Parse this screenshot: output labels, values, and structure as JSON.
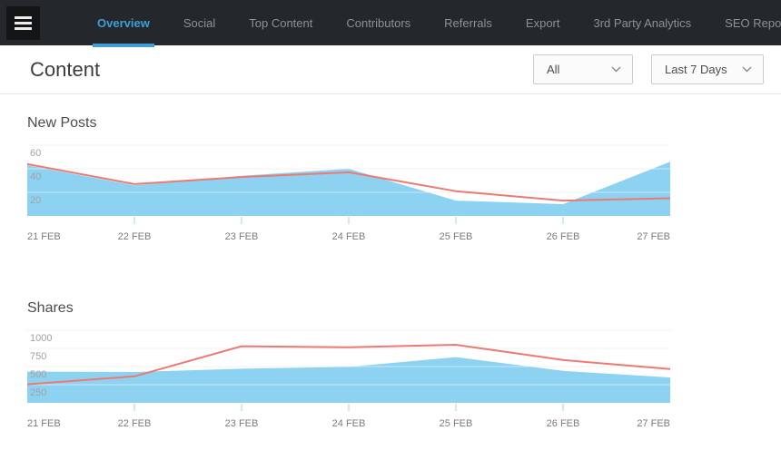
{
  "nav": {
    "menu_icon": "hamburger-menu-icon",
    "tabs": [
      {
        "label": "Overview",
        "active": true
      },
      {
        "label": "Social",
        "active": false
      },
      {
        "label": "Top Content",
        "active": false
      },
      {
        "label": "Contributors",
        "active": false
      },
      {
        "label": "Referrals",
        "active": false
      },
      {
        "label": "Export",
        "active": false
      },
      {
        "label": "3rd Party Analytics",
        "active": false
      },
      {
        "label": "SEO Report",
        "active": false
      }
    ],
    "active_color": "#3f9dd8",
    "bg_color": "#24282c"
  },
  "header": {
    "title": "Content",
    "filters": [
      {
        "name": "content-type",
        "value": "All",
        "icon": "chevron-down-icon"
      },
      {
        "name": "date-range",
        "value": "Last 7 Days",
        "icon": "chevron-down-icon"
      }
    ]
  },
  "chart_data": [
    {
      "type": "area",
      "title": "New Posts",
      "categories": [
        "21 FEB",
        "22 FEB",
        "23 FEB",
        "24 FEB",
        "25 FEB",
        "26 FEB",
        "27 FEB"
      ],
      "yticks": [
        60,
        40,
        20
      ],
      "ylim": [
        0,
        60
      ],
      "grid": true,
      "legend": "none",
      "series": [
        {
          "name": "new-posts-area",
          "type": "area",
          "color": "#8ed2f2",
          "values": [
            43,
            26,
            34,
            40,
            13,
            10,
            46
          ]
        },
        {
          "name": "new-posts-line",
          "type": "line",
          "color": "#ed7a72",
          "values": [
            44,
            27,
            33,
            37,
            21,
            13,
            15
          ]
        }
      ]
    },
    {
      "type": "area",
      "title": "Shares",
      "categories": [
        "21 FEB",
        "22 FEB",
        "23 FEB",
        "24 FEB",
        "25 FEB",
        "26 FEB",
        "27 FEB"
      ],
      "yticks": [
        1000,
        750,
        500,
        250
      ],
      "ylim": [
        0,
        1000
      ],
      "grid": true,
      "legend": "none",
      "series": [
        {
          "name": "shares-area",
          "type": "area",
          "color": "#8ed2f2",
          "values": [
            430,
            425,
            470,
            495,
            630,
            440,
            350
          ]
        },
        {
          "name": "shares-line",
          "type": "line",
          "color": "#ed7a72",
          "values": [
            255,
            365,
            780,
            765,
            800,
            590,
            465
          ]
        }
      ]
    }
  ],
  "chart_style": {
    "grid_color": "#e3e3e3",
    "grid_overlay_color": "rgba(255,255,255,0.5)",
    "tick_color": "#cdeaf9"
  }
}
